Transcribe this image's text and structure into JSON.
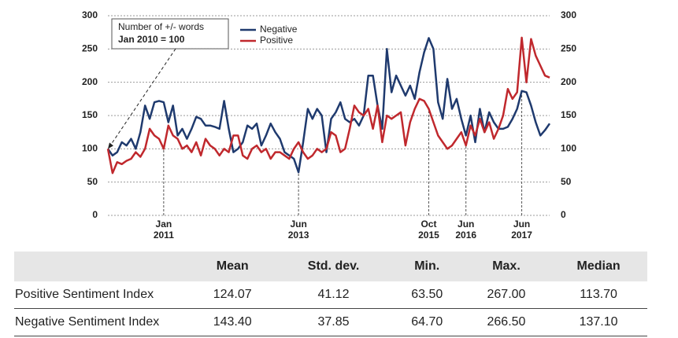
{
  "chart_data": {
    "type": "line",
    "annotation": [
      "Number of +/- words",
      "Jan 2010 = 100"
    ],
    "categories": [
      null,
      null,
      null,
      null,
      null,
      null,
      null,
      null,
      null,
      null,
      null,
      null,
      "Jan 2011",
      null,
      null,
      null,
      null,
      null,
      null,
      null,
      null,
      null,
      null,
      null,
      null,
      null,
      null,
      null,
      null,
      null,
      null,
      null,
      null,
      null,
      null,
      null,
      null,
      null,
      null,
      null,
      null,
      "Jun 2013",
      null,
      null,
      null,
      null,
      null,
      null,
      null,
      null,
      null,
      null,
      null,
      null,
      null,
      null,
      null,
      null,
      null,
      null,
      null,
      null,
      null,
      null,
      null,
      null,
      null,
      null,
      null,
      "Oct 2015",
      null,
      null,
      null,
      null,
      null,
      null,
      null,
      "Jun 2016",
      null,
      null,
      null,
      null,
      null,
      null,
      null,
      null,
      null,
      null,
      null,
      "Jun 2017",
      null,
      null,
      null,
      null,
      null,
      null
    ],
    "series": [
      {
        "name": "Negative",
        "color": "#1f3a6e",
        "values": [
          100,
          90,
          95,
          110,
          105,
          115,
          100,
          125,
          165,
          145,
          170,
          172,
          170,
          140,
          165,
          120,
          130,
          115,
          130,
          148,
          145,
          135,
          135,
          133,
          130,
          172,
          130,
          95,
          100,
          110,
          135,
          130,
          138,
          105,
          120,
          138,
          125,
          115,
          95,
          90,
          85,
          64.7,
          110,
          160,
          145,
          160,
          150,
          95,
          145,
          155,
          170,
          145,
          140,
          145,
          135,
          150,
          210,
          210,
          165,
          130,
          250,
          185,
          210,
          195,
          180,
          195,
          175,
          215,
          245,
          266.5,
          250,
          170,
          145,
          205,
          160,
          175,
          145,
          120,
          150,
          110,
          160,
          125,
          155,
          140,
          130,
          130,
          133,
          145,
          160,
          187,
          185,
          165,
          140,
          120,
          128,
          138
        ]
      },
      {
        "name": "Positive",
        "color": "#c0282d",
        "values": [
          100,
          63.5,
          80,
          77,
          82,
          85,
          95,
          88,
          100,
          130,
          120,
          115,
          100,
          135,
          120,
          115,
          100,
          105,
          95,
          110,
          90,
          115,
          105,
          100,
          90,
          100,
          95,
          120,
          120,
          90,
          85,
          100,
          105,
          95,
          100,
          85,
          95,
          95,
          90,
          85,
          100,
          110,
          95,
          85,
          90,
          100,
          95,
          100,
          125,
          120,
          95,
          100,
          130,
          165,
          155,
          150,
          160,
          130,
          165,
          110,
          150,
          145,
          150,
          155,
          105,
          140,
          160,
          175,
          172,
          160,
          140,
          120,
          110,
          100,
          105,
          115,
          125,
          105,
          135,
          120,
          145,
          125,
          140,
          115,
          130,
          150,
          190,
          175,
          185,
          267,
          200,
          265,
          240,
          225,
          210,
          207
        ]
      }
    ],
    "ylim": [
      0,
      300
    ],
    "yticks": [
      0,
      50,
      100,
      150,
      200,
      250,
      300
    ],
    "y2lim": [
      0,
      300
    ],
    "y2ticks": [
      0,
      50,
      100,
      150,
      200,
      250,
      300
    ],
    "grid": true
  },
  "table": {
    "columns": [
      "Mean",
      "Std. dev.",
      "Min.",
      "Max.",
      "Median"
    ],
    "rows": [
      {
        "label": "Positive Sentiment Index",
        "values": [
          "124.07",
          "41.12",
          "63.50",
          "267.00",
          "113.70"
        ]
      },
      {
        "label": "Negative Sentiment Index",
        "values": [
          "143.40",
          "37.85",
          "64.70",
          "266.50",
          "137.10"
        ]
      }
    ]
  }
}
